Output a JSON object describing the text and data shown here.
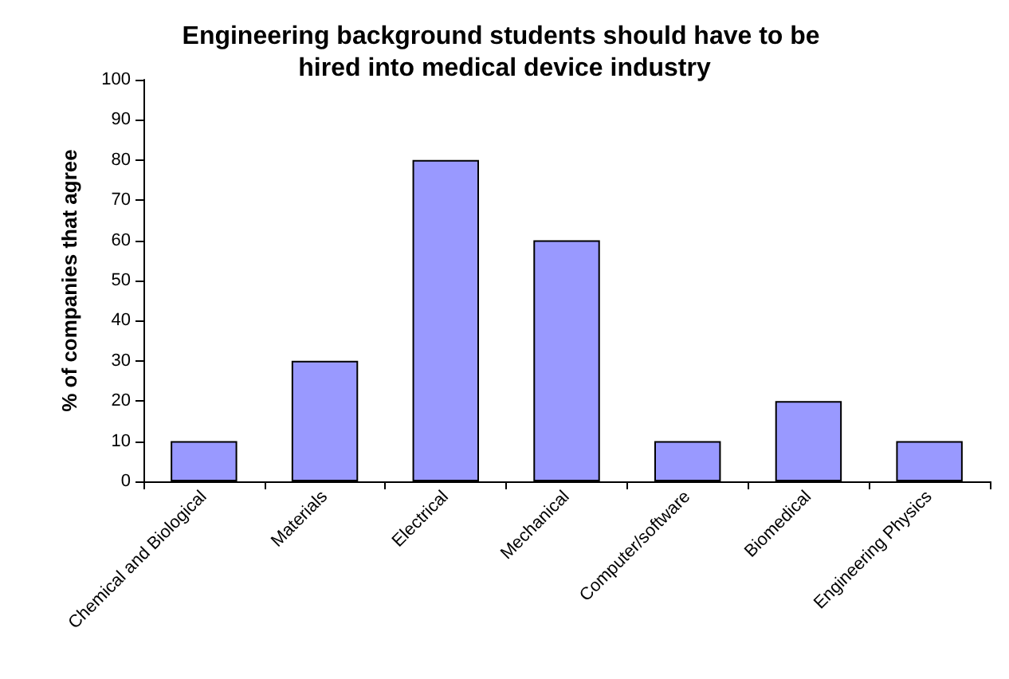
{
  "chart_data": {
    "type": "bar",
    "title": "Engineering background students should have to be hired into medical device industry",
    "ylabel": "% of companies that agree",
    "categories": [
      "Chemical and Biological",
      "Materials",
      "Electrical",
      "Mechanical",
      "Computer/software",
      "Biomedical",
      "Engineering Physics"
    ],
    "values": [
      10,
      30,
      80,
      60,
      10,
      20,
      10
    ],
    "color": "#9999ff",
    "ylim": [
      0,
      100
    ],
    "yticks": [
      0,
      10,
      20,
      30,
      40,
      50,
      60,
      70,
      80,
      90,
      100
    ],
    "grid": false
  }
}
